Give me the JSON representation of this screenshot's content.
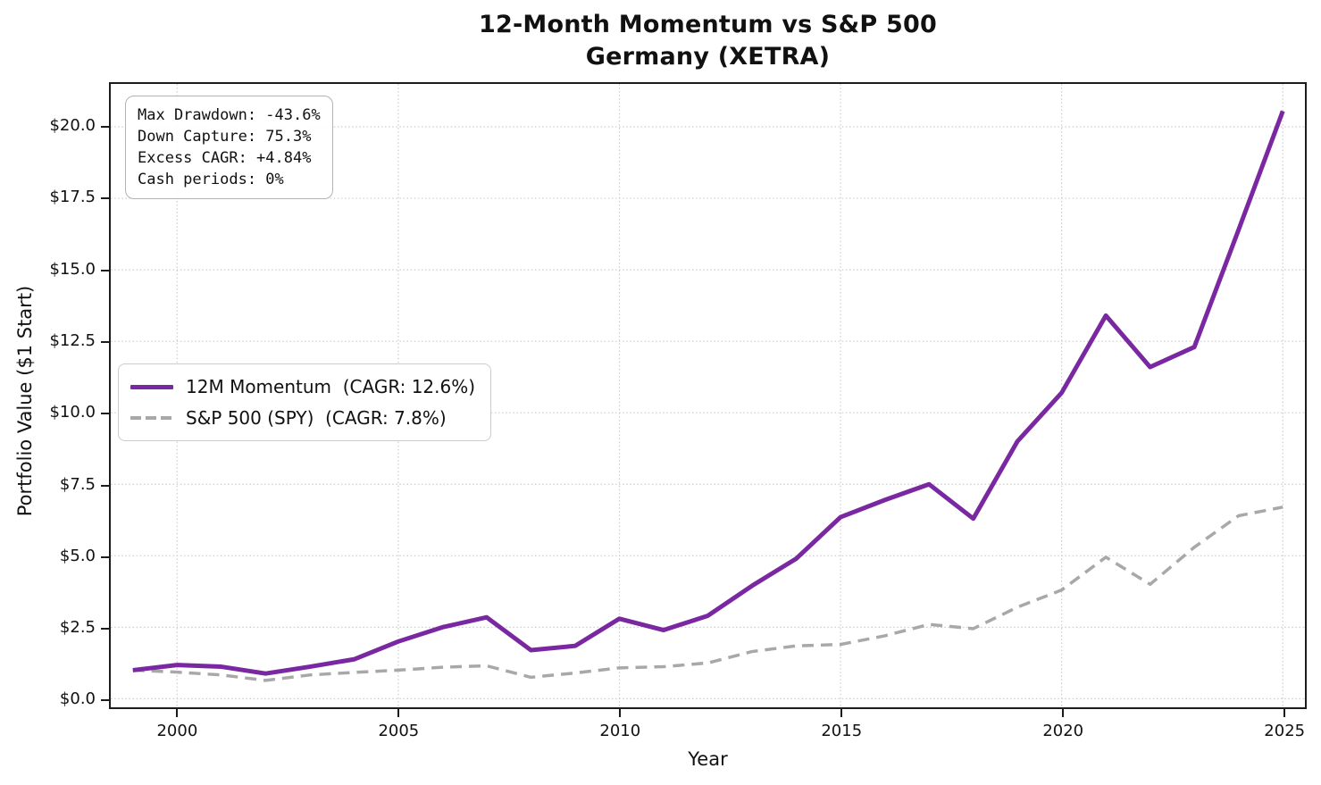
{
  "title": {
    "line1": "12-Month Momentum vs S&P 500",
    "line2": "Germany (XETRA)"
  },
  "stats_box": {
    "lines": [
      "Max Drawdown: -43.6%",
      "Down Capture: 75.3%",
      "Excess CAGR: +4.84%",
      "Cash periods: 0%"
    ]
  },
  "chart_data": {
    "type": "line",
    "title": "12-Month Momentum vs S&P 500\nGermany (XETRA)",
    "xlabel": "Year",
    "ylabel": "Portfolio Value ($1 Start)",
    "xlim": [
      1998.5,
      2025.5
    ],
    "ylim": [
      -0.3,
      21.5
    ],
    "grid": "dotted",
    "legend_position": "center-left",
    "x": [
      1999,
      2000,
      2001,
      2002,
      2003,
      2004,
      2005,
      2006,
      2007,
      2008,
      2009,
      2010,
      2011,
      2012,
      2013,
      2014,
      2015,
      2016,
      2017,
      2018,
      2019,
      2020,
      2021,
      2022,
      2023,
      2024,
      2025
    ],
    "series": [
      {
        "name": "12M Momentum",
        "legend_label": "12M Momentum  (CAGR: 12.6%)",
        "cagr": "12.6%",
        "color": "#7a28a2",
        "line_style": "solid",
        "line_width": 5,
        "values": [
          1.0,
          1.18,
          1.12,
          0.88,
          1.12,
          1.38,
          2.0,
          2.5,
          2.85,
          1.7,
          1.85,
          2.8,
          2.4,
          2.9,
          3.95,
          4.9,
          6.35,
          6.95,
          7.5,
          6.3,
          9.0,
          10.7,
          13.4,
          11.6,
          12.3,
          16.4,
          20.55
        ]
      },
      {
        "name": "S&P 500 (SPY)",
        "legend_label": "S&P 500 (SPY)  (CAGR: 7.8%)",
        "cagr": "7.8%",
        "color": "#a8a8a8",
        "line_style": "dashed",
        "line_width": 3.5,
        "values": [
          1.0,
          0.93,
          0.83,
          0.64,
          0.83,
          0.92,
          1.0,
          1.1,
          1.15,
          0.75,
          0.9,
          1.08,
          1.12,
          1.25,
          1.65,
          1.85,
          1.9,
          2.2,
          2.6,
          2.45,
          3.2,
          3.8,
          4.95,
          4.0,
          5.3,
          6.4,
          6.7
        ]
      }
    ],
    "xticks": [
      {
        "v": 2000,
        "label": "2000"
      },
      {
        "v": 2005,
        "label": "2005"
      },
      {
        "v": 2010,
        "label": "2010"
      },
      {
        "v": 2015,
        "label": "2015"
      },
      {
        "v": 2020,
        "label": "2020"
      },
      {
        "v": 2025,
        "label": "2025"
      }
    ],
    "yticks": [
      {
        "v": 0.0,
        "label": "$0.0"
      },
      {
        "v": 2.5,
        "label": "$2.5"
      },
      {
        "v": 5.0,
        "label": "$5.0"
      },
      {
        "v": 7.5,
        "label": "$7.5"
      },
      {
        "v": 10.0,
        "label": "$10.0"
      },
      {
        "v": 12.5,
        "label": "$12.5"
      },
      {
        "v": 15.0,
        "label": "$15.0"
      },
      {
        "v": 17.5,
        "label": "$17.5"
      },
      {
        "v": 20.0,
        "label": "$20.0"
      }
    ],
    "colors": {
      "grid": "#cccccc",
      "spine": "#1c1c1c",
      "momentum_purple": "#7a28a2",
      "spy_gray": "#a8a8a8"
    }
  }
}
